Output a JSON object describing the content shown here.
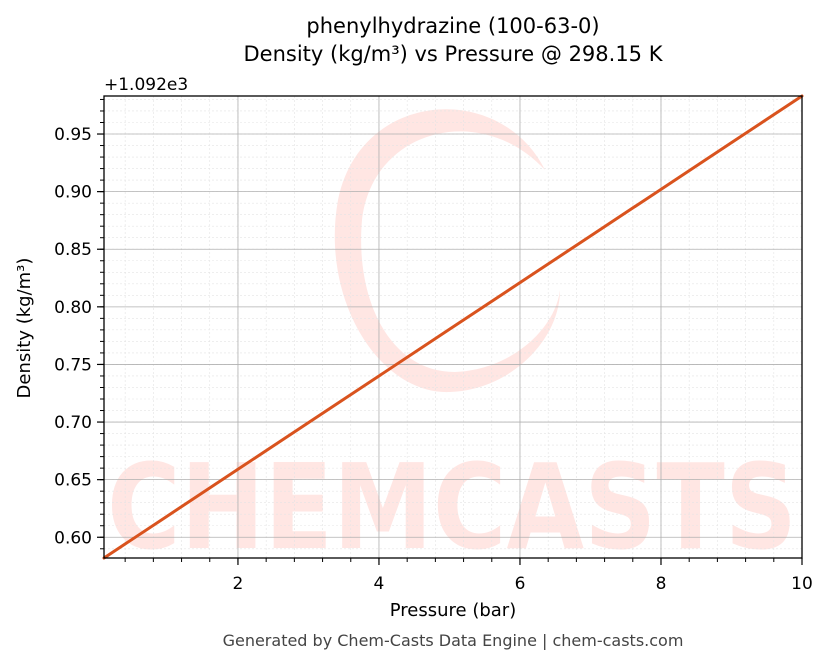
{
  "chart_data": {
    "type": "line",
    "title_line1": "phenylhydrazine (100-63-0)",
    "title_line2": "Density (kg/m³) vs Pressure @ 298.15 K",
    "xlabel": "Pressure (bar)",
    "ylabel": "Density (kg/m³)",
    "offset_text": "+1.092e3",
    "y_offset": 1092,
    "xlim": [
      0.1,
      10
    ],
    "ylim": [
      0.582,
      0.983
    ],
    "x_ticks": [
      2,
      4,
      6,
      8,
      10
    ],
    "x_tick_labels": [
      "2",
      "4",
      "6",
      "8",
      "10"
    ],
    "y_ticks": [
      0.6,
      0.65,
      0.7,
      0.75,
      0.8,
      0.85,
      0.9,
      0.95
    ],
    "y_tick_labels": [
      "0.60",
      "0.65",
      "0.70",
      "0.75",
      "0.80",
      "0.85",
      "0.90",
      "0.95"
    ],
    "grid": true,
    "series": [
      {
        "color": "#d9531e",
        "x": [
          0.1,
          1,
          2,
          3,
          4,
          5,
          6,
          7,
          8,
          9,
          10
        ],
        "y": [
          1092.582,
          1092.6185,
          1092.659,
          1092.6995,
          1092.74,
          1092.7805,
          1092.821,
          1092.8615,
          1092.902,
          1092.9425,
          1092.983
        ]
      }
    ]
  },
  "watermark": {
    "text": "CHEMCASTS",
    "color": "#ffe6e3"
  },
  "footer": "Generated by Chem-Casts Data Engine | chem-casts.com"
}
